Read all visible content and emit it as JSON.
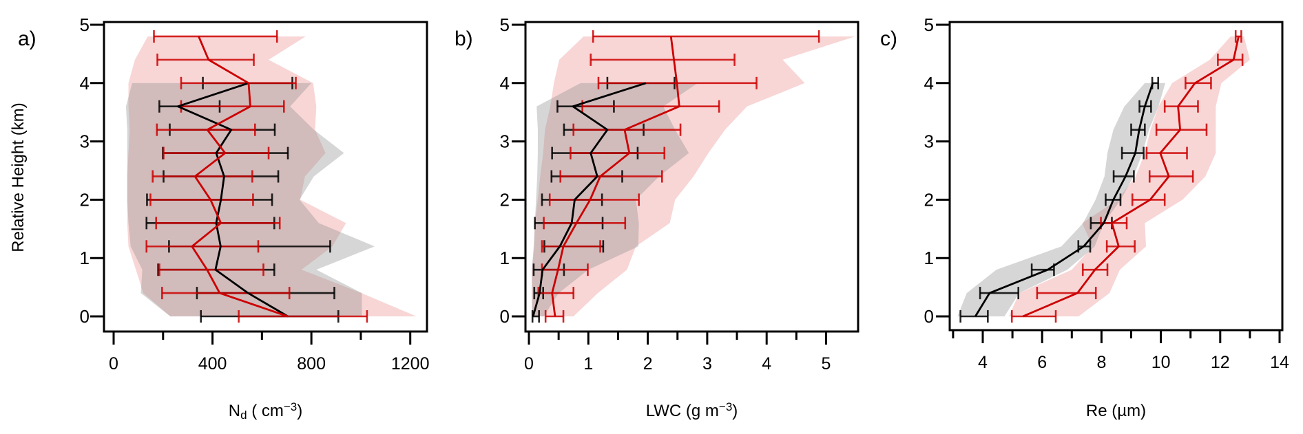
{
  "y_axis_label": "Relative Height (km)",
  "chart_data": [
    {
      "type": "line",
      "panel_label": "a)",
      "xlabel_parts": [
        {
          "t": "N",
          "style": "normal"
        },
        {
          "t": "d",
          "style": "sub"
        },
        {
          "t": " ( cm",
          "style": "normal"
        },
        {
          "t": "−3",
          "style": "sup"
        },
        {
          "t": ")",
          "style": "normal"
        }
      ],
      "xlim": [
        0,
        1200
      ],
      "ylim": [
        0,
        5
      ],
      "xticks": [
        0,
        400,
        800,
        1200
      ],
      "xminor": [
        200,
        600,
        1000
      ],
      "yticks": [
        0,
        1,
        2,
        3,
        4,
        5
      ],
      "series": [
        {
          "color": "#cc0000",
          "band_color": "#e88080",
          "height": [
            0,
            0.4,
            0.8,
            1.2,
            1.6,
            2.0,
            2.4,
            2.8,
            3.2,
            3.6,
            4.0,
            4.4,
            4.8
          ],
          "mean": [
            705,
            429,
            378,
            317,
            434,
            392,
            329,
            451,
            379,
            553,
            546,
            384,
            344
          ],
          "err_low": [
            506,
            196,
            185,
            133,
            172,
            149,
            158,
            202,
            175,
            273,
            273,
            177,
            163
          ],
          "err_high": [
            1025,
            711,
            606,
            585,
            672,
            564,
            561,
            627,
            572,
            689,
            737,
            567,
            661
          ],
          "band_low": [
            230,
            120,
            90,
            60,
            55,
            55,
            55,
            60,
            65,
            60,
            60,
            86,
            138
          ],
          "band_high": [
            1225,
            1003,
            760,
            885,
            940,
            755,
            774,
            857,
            815,
            820,
            807,
            627,
            777
          ]
        },
        {
          "color": "#000000",
          "band_color": "#8a8a8a",
          "height": [
            0,
            0.4,
            0.8,
            1.2,
            1.6,
            2.0,
            2.4,
            2.8,
            3.2,
            3.6,
            4.0
          ],
          "mean": [
            705,
            544,
            412,
            433,
            415,
            434,
            447,
            415,
            476,
            260,
            546
          ],
          "err_low": [
            353,
            337,
            180,
            224,
            133,
            135,
            202,
            199,
            227,
            185,
            361
          ],
          "err_high": [
            909,
            893,
            650,
            876,
            650,
            641,
            666,
            705,
            652,
            429,
            723
          ],
          "band_low": [
            229,
            110,
            116,
            69,
            60,
            55,
            55,
            55,
            55,
            50,
            75
          ],
          "band_high": [
            1004,
            1004,
            820,
            1056,
            830,
            752,
            810,
            932,
            810,
            714,
            800
          ]
        }
      ]
    },
    {
      "type": "line",
      "panel_label": "b)",
      "xlabel_parts": [
        {
          "t": "LWC (g m",
          "style": "normal"
        },
        {
          "t": "−3",
          "style": "sup"
        },
        {
          "t": ")",
          "style": "normal"
        }
      ],
      "xlim": [
        0,
        5.5
      ],
      "ylim": [
        0,
        5
      ],
      "xticks": [
        0,
        1,
        2,
        3,
        4,
        5
      ],
      "xminor": [
        0.5,
        1.5,
        2.5,
        3.5,
        4.5
      ],
      "yticks": [
        0,
        1,
        2,
        3,
        4,
        5
      ],
      "series": [
        {
          "color": "#cc0000",
          "band_color": "#e88080",
          "height": [
            0,
            0.4,
            0.8,
            1.2,
            1.6,
            2.0,
            2.4,
            2.8,
            3.2,
            3.6,
            4.0,
            4.4,
            4.8
          ],
          "mean": [
            0.44,
            0.39,
            0.49,
            0.58,
            0.8,
            1.03,
            1.2,
            1.69,
            1.61,
            2.53,
            2.49,
            2.44,
            2.39
          ],
          "err_low": [
            0.28,
            0.16,
            0.22,
            0.22,
            0.25,
            0.35,
            0.53,
            0.7,
            0.75,
            0.9,
            1.17,
            1.04,
            1.08
          ],
          "err_high": [
            0.58,
            0.75,
            0.99,
            1.2,
            1.62,
            1.85,
            2.24,
            2.28,
            2.55,
            3.2,
            3.83,
            3.46,
            4.88
          ],
          "band_low": [
            0.06,
            0.05,
            0.05,
            0.09,
            0.1,
            0.15,
            0.19,
            0.24,
            0.27,
            0.36,
            0.42,
            0.51,
            0.92
          ],
          "band_high": [
            0.75,
            1.16,
            1.65,
            1.8,
            2.37,
            2.46,
            2.77,
            3.02,
            3.3,
            3.67,
            4.64,
            4.27,
            5.49
          ]
        },
        {
          "color": "#000000",
          "band_color": "#8a8a8a",
          "height": [
            0,
            0.4,
            0.8,
            1.2,
            1.6,
            2.0,
            2.4,
            2.8,
            3.2,
            3.6,
            4.0
          ],
          "mean": [
            0.07,
            0.18,
            0.23,
            0.52,
            0.72,
            0.77,
            1.15,
            1.04,
            1.32,
            0.74,
            1.97
          ],
          "err_low": [
            0.06,
            0.09,
            0.08,
            0.26,
            0.1,
            0.22,
            0.38,
            0.39,
            0.59,
            0.48,
            1.32
          ],
          "err_high": [
            0.17,
            0.24,
            0.59,
            1.25,
            1.24,
            1.23,
            1.57,
            1.83,
            1.93,
            1.43,
            2.45
          ],
          "band_low": [
            0.05,
            0.05,
            0.05,
            0.08,
            0.1,
            0.12,
            0.14,
            0.15,
            0.15,
            0.13,
            0.87
          ],
          "band_high": [
            0.25,
            0.5,
            1.0,
            1.84,
            1.85,
            1.8,
            2.19,
            2.69,
            2.46,
            2.26,
            2.84
          ]
        }
      ]
    },
    {
      "type": "line",
      "panel_label": "c)",
      "xlabel_parts": [
        {
          "t": "Re (µm)",
          "style": "normal"
        }
      ],
      "xlim": [
        3,
        14
      ],
      "ylim": [
        0,
        5
      ],
      "xticks": [
        4,
        6,
        8,
        10,
        12,
        14
      ],
      "xminor": [
        3,
        5,
        7,
        9,
        11,
        13
      ],
      "yticks": [
        0,
        1,
        2,
        3,
        4,
        5
      ],
      "series": [
        {
          "color": "#cc0000",
          "band_color": "#e88080",
          "height": [
            0,
            0.4,
            0.8,
            1.2,
            1.6,
            2.0,
            2.4,
            2.8,
            3.2,
            3.6,
            4.0,
            4.4,
            4.8
          ],
          "mean": [
            5.35,
            7.19,
            7.78,
            8.58,
            8.35,
            9.64,
            10.27,
            9.98,
            10.65,
            10.58,
            11.15,
            12.45,
            12.62
          ],
          "err_low": [
            4.98,
            5.83,
            7.37,
            8.18,
            7.98,
            9.04,
            9.62,
            9.52,
            9.85,
            10.13,
            10.83,
            11.92,
            12.52
          ],
          "err_high": [
            6.46,
            7.81,
            8.2,
            9.12,
            8.85,
            10.13,
            11.08,
            10.88,
            11.54,
            11.25,
            11.69,
            12.75,
            12.71
          ],
          "band_low": [
            4.88,
            5.23,
            7.0,
            7.7,
            7.35,
            8.54,
            9.15,
            9.46,
            9.65,
            9.92,
            10.38,
            11.65,
            12.35
          ],
          "band_high": [
            7.23,
            8.27,
            8.62,
            9.5,
            9.46,
            10.73,
            11.5,
            11.85,
            11.85,
            11.85,
            12.04,
            13.0,
            12.8
          ]
        },
        {
          "color": "#000000",
          "band_color": "#8a8a8a",
          "height": [
            0,
            0.4,
            0.8,
            1.2,
            1.6,
            2.0,
            2.4,
            2.8,
            3.2,
            3.6,
            4.0
          ],
          "mean": [
            3.75,
            4.23,
            6.19,
            7.4,
            8.08,
            8.4,
            8.81,
            9.14,
            9.27,
            9.46,
            9.73
          ],
          "err_low": [
            3.25,
            3.91,
            5.65,
            7.22,
            7.64,
            8.14,
            8.41,
            8.69,
            9.0,
            9.28,
            9.71
          ],
          "err_high": [
            4.17,
            5.2,
            6.4,
            7.62,
            8.35,
            8.64,
            9.09,
            9.42,
            9.46,
            9.67,
            9.91
          ],
          "band_low": [
            3.15,
            3.46,
            4.46,
            6.65,
            7.38,
            7.8,
            8.1,
            8.2,
            8.4,
            8.77,
            9.46
          ],
          "band_high": [
            4.73,
            5.23,
            6.85,
            7.77,
            8.08,
            8.65,
            9.08,
            9.38,
            9.6,
            9.92,
            10.15
          ]
        }
      ]
    }
  ]
}
